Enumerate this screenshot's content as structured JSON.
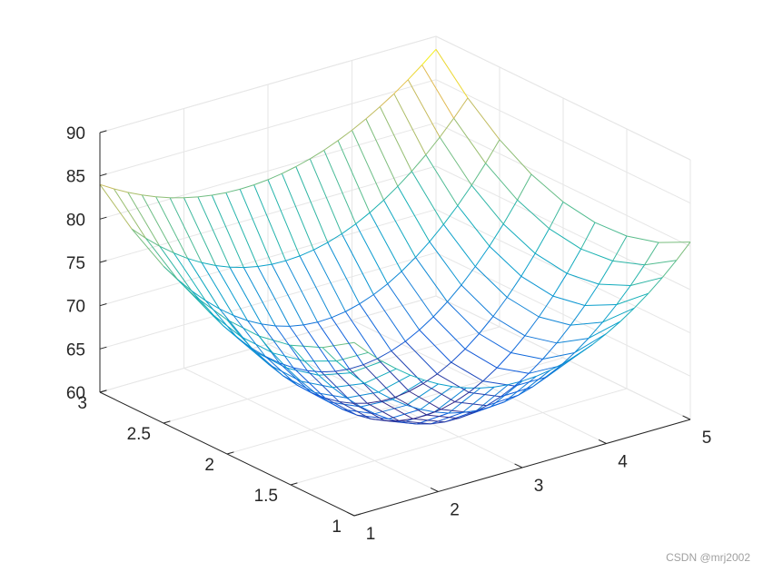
{
  "chart_data": {
    "type": "surface",
    "title": "",
    "xlabel": "",
    "ylabel": "",
    "zlabel": "",
    "grid": true,
    "colormap": "parula",
    "xlim": [
      1,
      5
    ],
    "ylim": [
      1,
      3
    ],
    "zlim": [
      60,
      90
    ],
    "x_ticks": [
      "1",
      "2",
      "3",
      "4",
      "5"
    ],
    "y_ticks": [
      "1",
      "1.5",
      "2",
      "2.5",
      "3"
    ],
    "z_ticks": [
      "60",
      "65",
      "70",
      "75",
      "80",
      "85",
      "90"
    ],
    "mesh": {
      "x_samples": 25,
      "y_samples": 9
    },
    "corner_values": {
      "x1_y1": 80.0,
      "x5_y1": 80.5,
      "x1_y3": 84.0,
      "x5_y3": 88.5
    },
    "edge_midpoint_values": {
      "y1_edge_at_x3": 70.0,
      "y3_edge_at_x3": 79.0,
      "x1_edge_at_y2": 75.5,
      "x5_edge_at_y2": 78.0
    },
    "minimum": {
      "x": 3.0,
      "y": 2.0,
      "z": 61.0
    }
  },
  "watermark": "CSDN @mrj2002"
}
